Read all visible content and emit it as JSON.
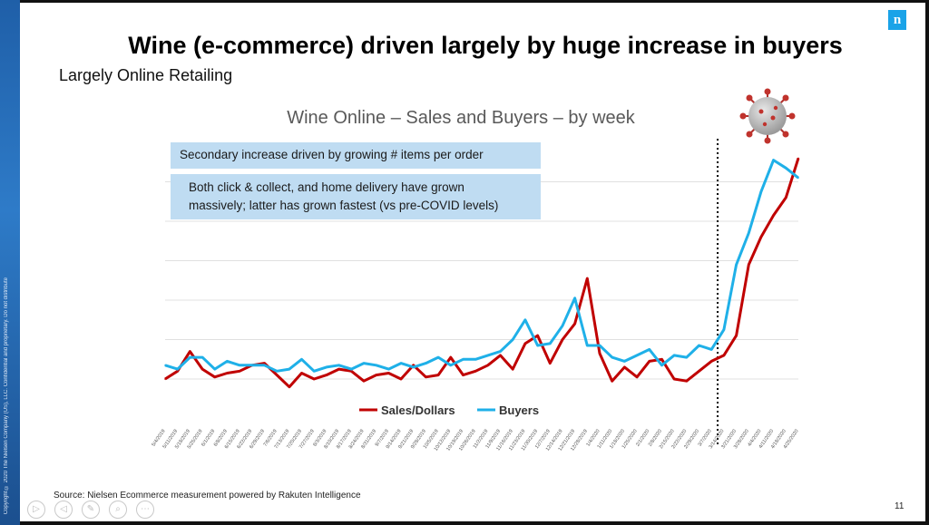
{
  "slide": {
    "title": "Wine (e-commerce) driven largely by huge increase in buyers",
    "subtitle": "Largely Online Retailing",
    "logo_letter": "n",
    "source": "Source: Nielsen Ecommerce measurement powered by Rakuten Intelligence",
    "page_number": "11",
    "sidebar_text": "Copyright © 2020 The Nielsen Company (US), LLC. Confidential and proprietary. Do not distribute"
  },
  "notes": {
    "note1": "Secondary increase driven by growing # items per order",
    "note2_line1": "Both click & collect, and home delivery have grown",
    "note2_line2": "massively; latter has grown fastest (vs pre-COVID levels)"
  },
  "colors": {
    "sales": "#c00000",
    "buyers": "#1fb0e8",
    "grid": "#e0e0e0",
    "callout_bg": "#bfdcf2",
    "logo": "#1aa3e8"
  },
  "icons": {
    "virus": "coronavirus-icon",
    "toolbar": [
      "play-icon",
      "back-icon",
      "pen-icon",
      "zoom-icon",
      "more-icon"
    ]
  },
  "chart_data": {
    "type": "line",
    "title": "Wine Online – Sales and Buyers – by week",
    "xlabel": "",
    "ylabel": "",
    "grid": true,
    "legend_position": "bottom-center",
    "x": [
      "5/4/2019",
      "5/11/2019",
      "5/18/2019",
      "5/25/2019",
      "6/1/2019",
      "6/8/2019",
      "6/15/2019",
      "6/22/2019",
      "6/29/2019",
      "7/6/2019",
      "7/13/2019",
      "7/20/2019",
      "7/27/2019",
      "8/3/2019",
      "8/10/2019",
      "8/17/2019",
      "8/24/2019",
      "8/31/2019",
      "9/7/2019",
      "9/14/2019",
      "9/21/2019",
      "9/28/2019",
      "10/5/2019",
      "10/12/2019",
      "10/19/2019",
      "10/26/2019",
      "11/2/2019",
      "11/9/2019",
      "11/16/2019",
      "11/23/2019",
      "11/30/2019",
      "12/7/2019",
      "12/14/2019",
      "12/21/2019",
      "12/28/2019",
      "1/4/2020",
      "1/11/2020",
      "1/18/2020",
      "1/25/2020",
      "2/1/2020",
      "2/8/2020",
      "2/15/2020",
      "2/22/2020",
      "2/29/2020",
      "3/7/2020",
      "3/14/2020",
      "3/21/2020",
      "3/28/2020",
      "4/4/2020",
      "4/11/2020",
      "4/18/2020",
      "4/25/2020"
    ],
    "ylim": [
      0,
      7
    ],
    "marker_line_index": 44.5,
    "series": [
      {
        "name": "Sales/Dollars",
        "color": "#c00000",
        "values": [
          0.0,
          0.2,
          0.7,
          0.25,
          0.05,
          0.15,
          0.2,
          0.35,
          0.4,
          0.1,
          -0.2,
          0.15,
          0.0,
          0.1,
          0.25,
          0.2,
          -0.05,
          0.1,
          0.15,
          0.0,
          0.35,
          0.05,
          0.1,
          0.55,
          0.1,
          0.2,
          0.35,
          0.6,
          0.25,
          0.9,
          1.1,
          0.4,
          1.0,
          1.4,
          2.55,
          0.65,
          -0.05,
          0.3,
          0.05,
          0.45,
          0.5,
          0.0,
          -0.05,
          0.2,
          0.45,
          0.6,
          1.1,
          2.9,
          3.6,
          4.15,
          4.6,
          5.6
        ]
      },
      {
        "name": "Buyers",
        "color": "#1fb0e8",
        "values": [
          0.35,
          0.25,
          0.55,
          0.55,
          0.25,
          0.45,
          0.35,
          0.35,
          0.35,
          0.2,
          0.25,
          0.5,
          0.2,
          0.3,
          0.35,
          0.25,
          0.4,
          0.35,
          0.25,
          0.4,
          0.3,
          0.4,
          0.55,
          0.35,
          0.5,
          0.5,
          0.6,
          0.7,
          1.0,
          1.5,
          0.85,
          0.9,
          1.35,
          2.05,
          0.85,
          0.85,
          0.55,
          0.45,
          0.6,
          0.75,
          0.35,
          0.6,
          0.55,
          0.85,
          0.75,
          1.25,
          2.9,
          3.7,
          4.75,
          5.55,
          5.35,
          5.1
        ]
      }
    ]
  }
}
